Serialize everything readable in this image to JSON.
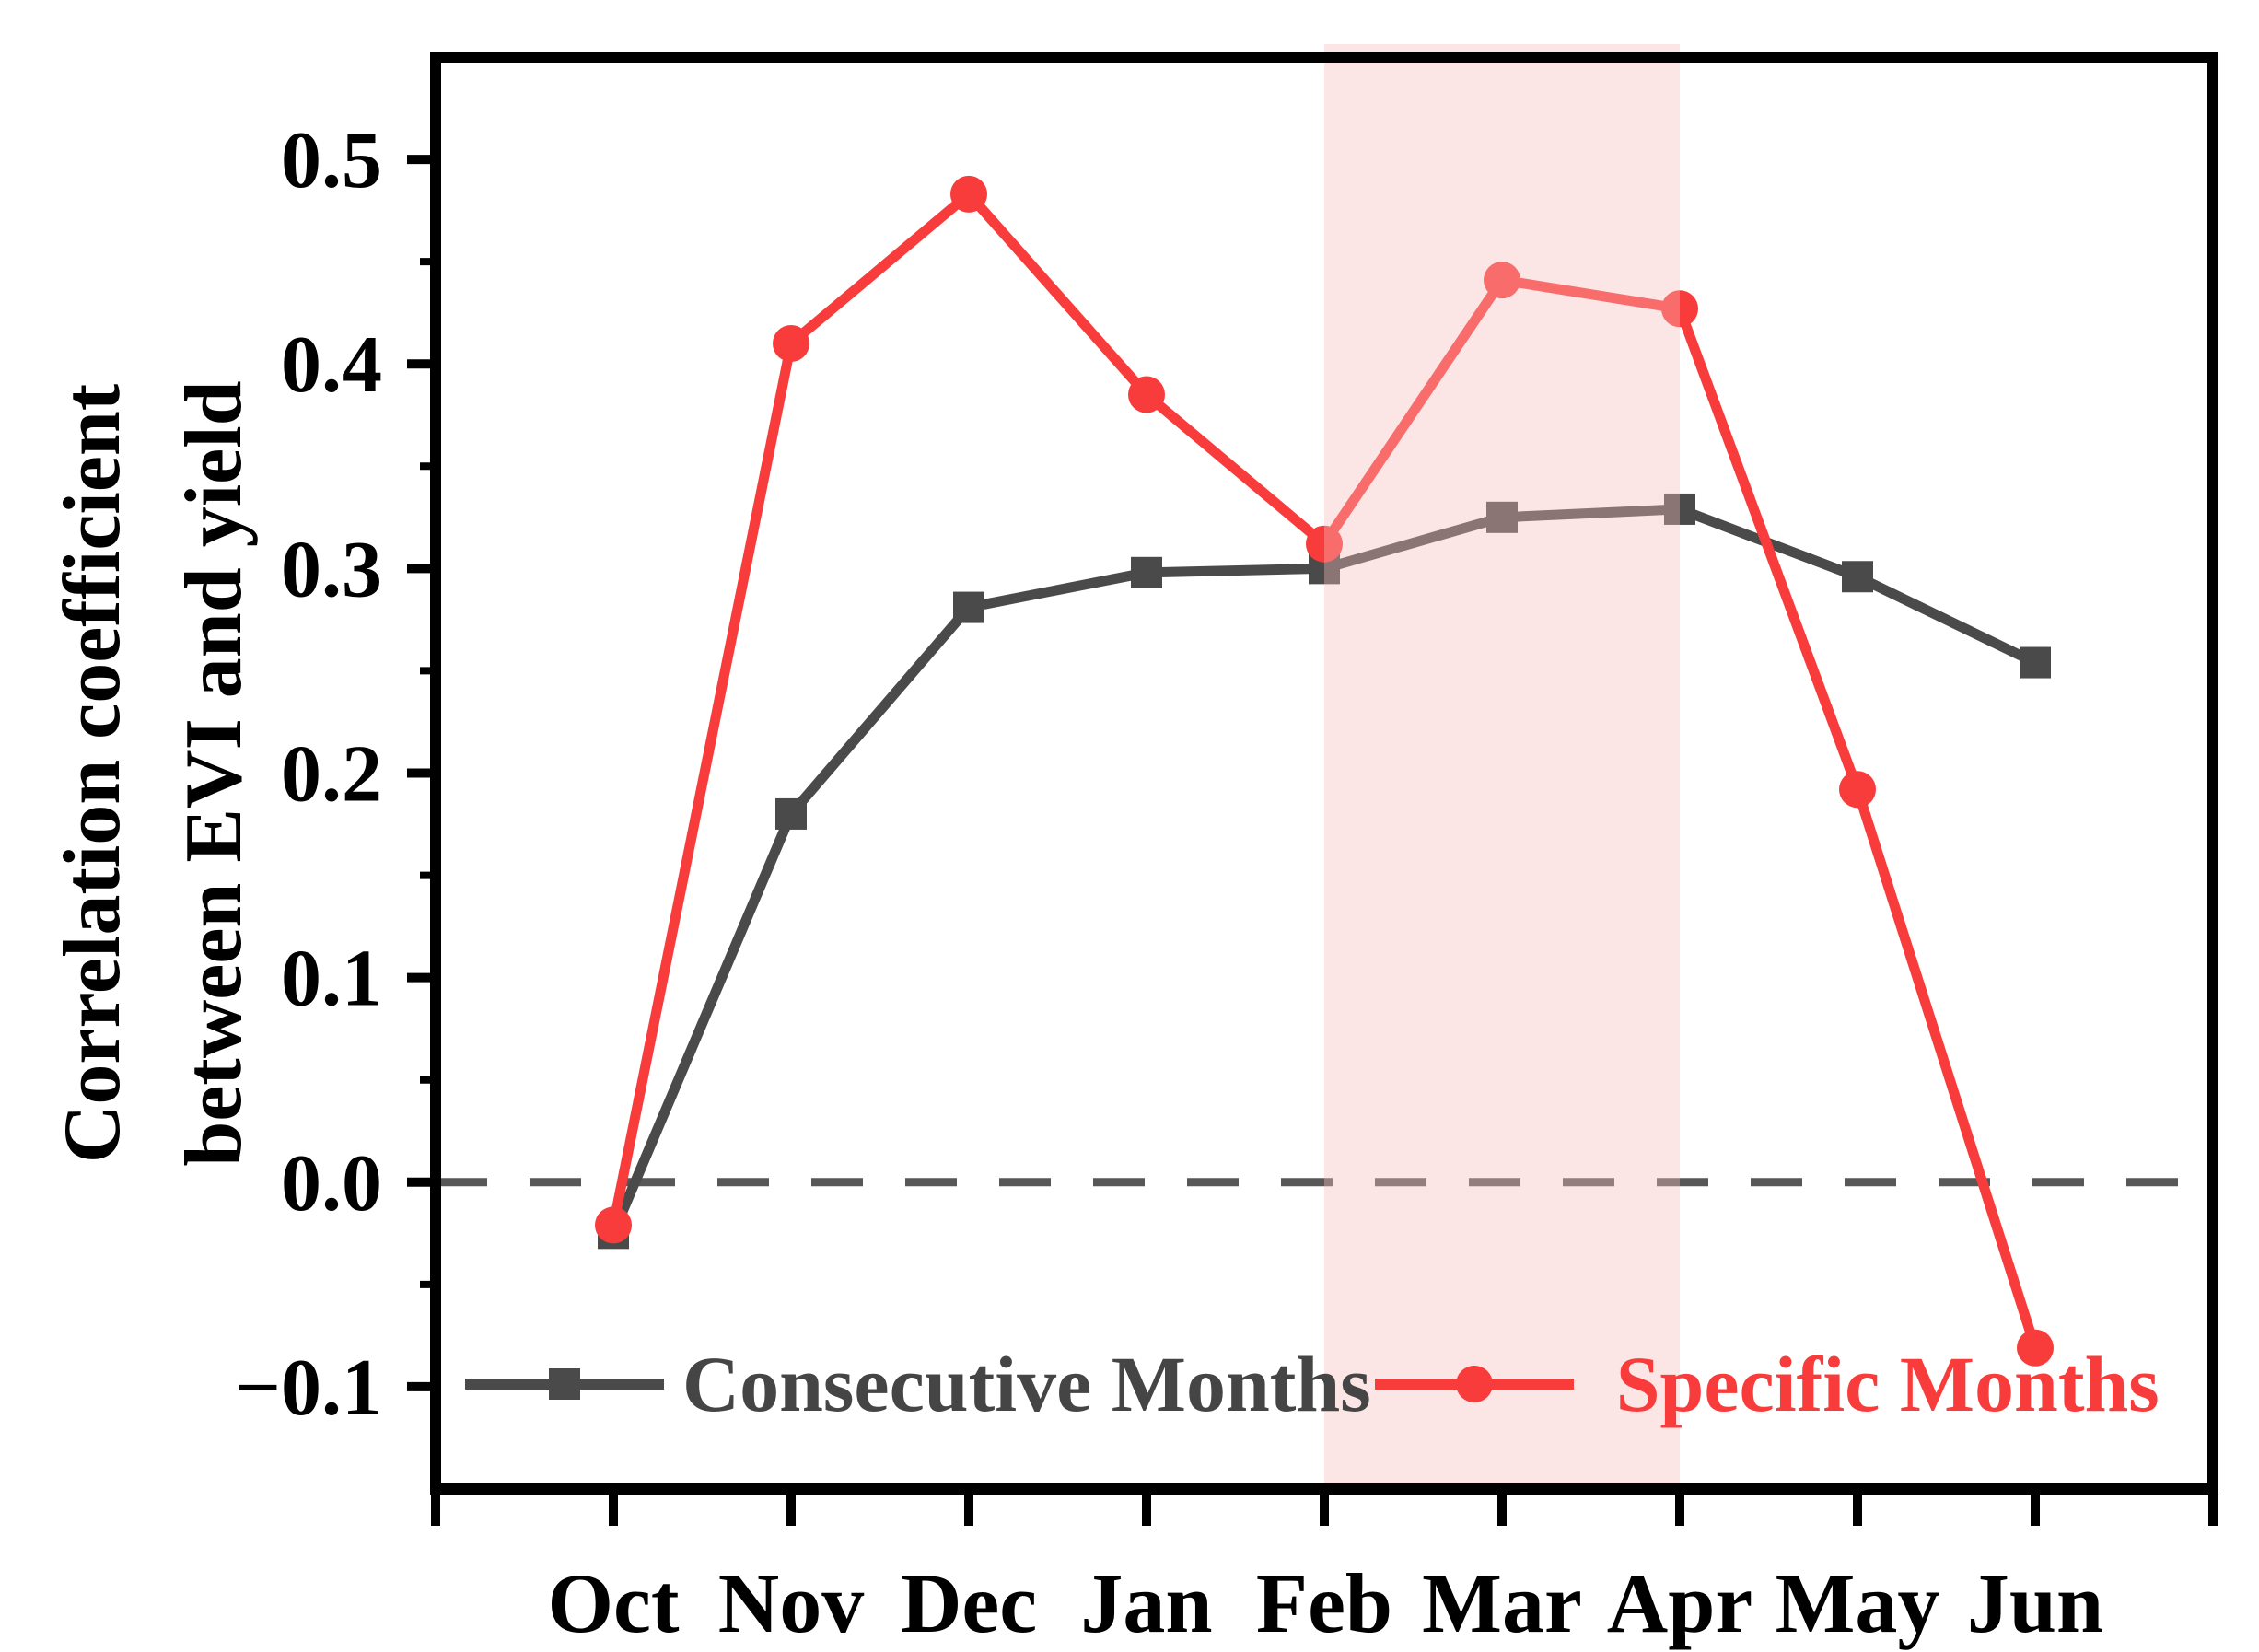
{
  "ylabel": {
    "line1": "Correlation coefficient",
    "line2": "between EVI and yield"
  },
  "legend": [
    {
      "label": "Consecutive Months",
      "color": "#4A4A4A",
      "marker": "square-icon"
    },
    {
      "label": "Specific Months",
      "color": "#F83C3C",
      "marker": "circle-icon"
    }
  ],
  "colors": {
    "consecutive": "#4A4A4A",
    "specific": "#F83C3C",
    "zero_line": "#575757",
    "axis": "#000000",
    "highlight_band": "rgba(248,187,187,0.38)"
  },
  "chart_data": {
    "type": "line",
    "categories": [
      "Oct",
      "Nov",
      "Dec",
      "Jan",
      "Feb",
      "Mar",
      "Apr",
      "May",
      "Jun"
    ],
    "series": [
      {
        "name": "Consecutive Months",
        "color": "#4A4A4A",
        "marker": "square",
        "values": [
          -0.025,
          0.18,
          0.281,
          0.298,
          0.3,
          0.325,
          0.329,
          0.296,
          0.254
        ]
      },
      {
        "name": "Specific Months",
        "color": "#F83C3C",
        "marker": "circle",
        "values": [
          -0.021,
          0.41,
          0.483,
          0.385,
          0.312,
          0.441,
          0.427,
          0.192,
          -0.081
        ]
      }
    ],
    "title": "",
    "xlabel": "",
    "ylabel": "Correlation coefficient between EVI and yield",
    "ylim": [
      -0.15,
      0.55
    ],
    "yticks_major": [
      0.5,
      0.4,
      0.3,
      0.2,
      0.1,
      0.0,
      -0.1
    ],
    "ytick_labels": [
      "0.5",
      "0.4",
      "0.3",
      "0.2",
      "0.1",
      "0.0",
      "−0.1"
    ],
    "yticks_minor": [
      0.45,
      0.35,
      0.25,
      0.15,
      0.05,
      -0.05
    ],
    "zero_dashed_line": 0.0,
    "highlight_band": {
      "from": "Feb",
      "to": "Apr"
    },
    "grid": false,
    "legend_position": "bottom-inside"
  }
}
